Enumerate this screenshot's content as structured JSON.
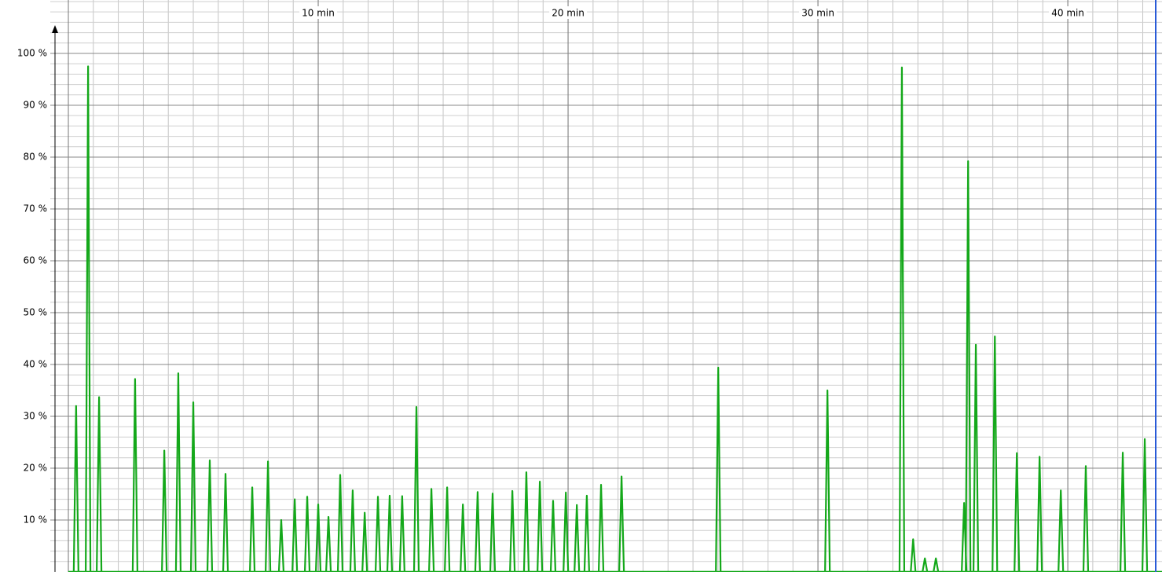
{
  "chart_data": {
    "type": "spike",
    "x": [
      0.31,
      0.79,
      1.23,
      2.67,
      3.84,
      4.4,
      5.0,
      5.66,
      6.29,
      7.36,
      7.99,
      8.52,
      9.06,
      9.56,
      10.0,
      10.41,
      10.88,
      11.38,
      11.86,
      12.39,
      12.86,
      13.36,
      13.93,
      14.53,
      15.16,
      15.79,
      16.38,
      16.98,
      17.77,
      18.33,
      18.87,
      19.4,
      19.91,
      20.35,
      20.75,
      21.32,
      22.14,
      26.01,
      30.38,
      33.36,
      33.81,
      34.28,
      34.72,
      35.85,
      36.01,
      36.32,
      37.08,
      37.96,
      38.87,
      39.72,
      40.72,
      42.2,
      43.08
    ],
    "values": [
      32,
      97.5,
      33.7,
      37.2,
      23.4,
      38.3,
      32.7,
      21.5,
      18.9,
      16.3,
      21.3,
      10,
      14,
      14.5,
      13,
      10.6,
      18.7,
      15.7,
      11.4,
      14.5,
      14.7,
      14.6,
      31.8,
      16,
      16.3,
      13,
      15.4,
      15.1,
      15.6,
      19.2,
      17.4,
      13.7,
      15.3,
      12.9,
      14.7,
      16.8,
      18.4,
      39.4,
      35,
      97.3,
      6.3,
      2.6,
      2.6,
      13.3,
      79.2,
      43.8,
      45.4,
      22.9,
      22.2,
      15.7,
      20.4,
      23,
      25.6
    ],
    "color": "#14a81a",
    "xlim": [
      0,
      43.77
    ],
    "ylim": [
      0,
      110.3
    ],
    "xticks": [
      {
        "value": 10,
        "label": "10 min"
      },
      {
        "value": 20,
        "label": "20 min"
      },
      {
        "value": 30,
        "label": "30 min"
      },
      {
        "value": 40,
        "label": "40 min"
      }
    ],
    "yticks": [
      {
        "value": 10,
        "label": "10 %"
      },
      {
        "value": 20,
        "label": "20 %"
      },
      {
        "value": 30,
        "label": "30 %"
      },
      {
        "value": 40,
        "label": "40 %"
      },
      {
        "value": 50,
        "label": "50 %"
      },
      {
        "value": 60,
        "label": "60 %"
      },
      {
        "value": 70,
        "label": "70 %"
      },
      {
        "value": 80,
        "label": "80 %"
      },
      {
        "value": 90,
        "label": "90 %"
      },
      {
        "value": 100,
        "label": "100 %"
      }
    ],
    "grid": true
  }
}
